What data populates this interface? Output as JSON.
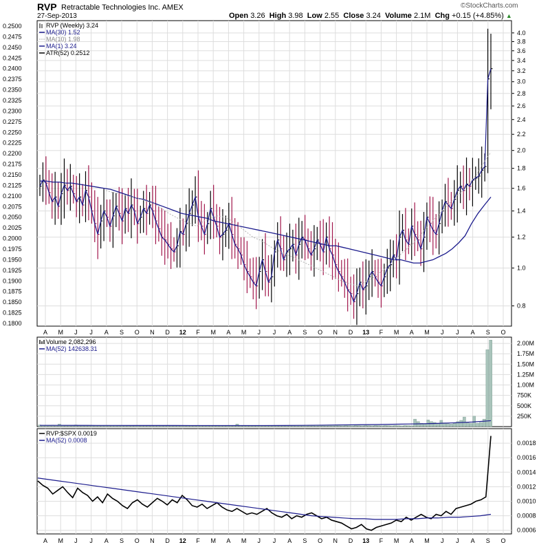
{
  "header": {
    "symbol": "RVP",
    "company": "Retractable Technologies Inc.",
    "exchange": "AMEX",
    "date": "27-Sep-2013",
    "quote": {
      "open_label": "Open",
      "open": "3.26",
      "high_label": "High",
      "high": "3.98",
      "low_label": "Low",
      "low": "2.55",
      "close_label": "Close",
      "close": "3.24",
      "volume_label": "Volume",
      "volume": "2.1M",
      "chg_label": "Chg",
      "chg": "+0.15 (+4.85%)"
    },
    "brand": "©StockCharts.com"
  },
  "colors": {
    "price_up": "#000000",
    "price_down": "#a0144a",
    "ma30": "#1a1a8c",
    "ma10": "#b0b0b0",
    "ma1": "#1a1a8c",
    "volume_bar": "#a9c4bb",
    "ratio": "#000000",
    "ratio_ma": "#1a1a8c",
    "grid": "#dddddd",
    "frame": "#000000"
  },
  "chart_data": [
    {
      "type": "ohlc",
      "legend": [
        {
          "icon": "ohlc-icon",
          "text": "RVP (Weekly) 3.24"
        },
        {
          "icon": "line-swatch",
          "text": "MA(30) 1.52",
          "color": "#1a1a8c"
        },
        {
          "icon": "dotted-swatch",
          "text": "MA(10) 1.98",
          "color": "#b0b0b0"
        },
        {
          "icon": "line-swatch",
          "text": "MA(1) 3.24",
          "color": "#1a1a8c"
        },
        {
          "icon": "line-swatch",
          "text": "ATR(52) 0.2512",
          "color": "#000000"
        }
      ],
      "y_right_ticks": [
        0.8,
        1.0,
        1.2,
        1.4,
        1.6,
        1.8,
        2.0,
        2.2,
        2.4,
        2.6,
        2.8,
        3.0,
        3.2,
        3.4,
        3.6,
        3.8,
        4.0
      ],
      "y_left_ticks": [
        "0.1800",
        "0.1825",
        "0.1850",
        "0.1875",
        "0.1900",
        "0.1925",
        "0.1950",
        "0.1975",
        "0.2000",
        "0.2025",
        "0.2050",
        "0.2075",
        "0.2100",
        "0.2125",
        "0.2150",
        "0.2175",
        "0.2200",
        "0.2225",
        "0.2250",
        "0.2275",
        "0.2300",
        "0.2325",
        "0.2350",
        "0.2375",
        "0.2400",
        "0.2425",
        "0.2450",
        "0.2475",
        "0.2500"
      ],
      "ylim": [
        0.71,
        4.3
      ],
      "log_scale": true,
      "close": [
        1.62,
        1.68,
        1.65,
        1.56,
        1.48,
        1.52,
        1.44,
        1.55,
        1.63,
        1.58,
        1.62,
        1.55,
        1.48,
        1.52,
        1.45,
        1.58,
        1.52,
        1.4,
        1.3,
        1.22,
        1.32,
        1.4,
        1.35,
        1.28,
        1.36,
        1.44,
        1.38,
        1.32,
        1.42,
        1.38,
        1.45,
        1.4,
        1.3,
        1.35,
        1.42,
        1.38,
        1.45,
        1.4,
        1.32,
        1.26,
        1.2,
        1.18,
        1.15,
        1.12,
        1.1,
        1.14,
        1.24,
        1.22,
        1.3,
        1.38,
        1.45,
        1.52,
        1.35,
        1.28,
        1.22,
        1.3,
        1.42,
        1.35,
        1.28,
        1.2,
        1.22,
        1.25,
        1.3,
        1.22,
        1.15,
        1.12,
        1.08,
        1.02,
        0.98,
        0.95,
        0.92,
        0.9,
        0.98,
        1.05,
        0.98,
        0.92,
        0.95,
        1.1,
        1.18,
        1.12,
        1.05,
        1.1,
        1.12,
        1.15,
        1.08,
        1.15,
        1.2,
        1.18,
        1.12,
        1.08,
        1.12,
        1.18,
        1.15,
        1.1,
        1.2,
        1.12,
        1.08,
        1.02,
        0.98,
        0.95,
        0.92,
        0.88,
        0.86,
        0.82,
        0.86,
        0.92,
        0.88,
        0.9,
        0.95,
        0.98,
        0.95,
        0.92,
        0.9,
        0.95,
        1.0,
        1.02,
        1.08,
        1.05,
        1.2,
        1.25,
        1.18,
        1.15,
        1.28,
        1.22,
        1.18,
        1.12,
        1.2,
        1.35,
        1.3,
        1.25,
        1.22,
        1.3,
        1.4,
        1.48,
        1.45,
        1.42,
        1.5,
        1.58,
        1.62,
        1.58,
        1.64,
        1.62,
        1.68,
        1.7,
        1.72,
        1.78,
        1.82,
        3.05,
        3.24
      ],
      "ma30": [
        1.67,
        1.67,
        1.66,
        1.66,
        1.65,
        1.65,
        1.64,
        1.63,
        1.62,
        1.61,
        1.6,
        1.59,
        1.57,
        1.55,
        1.53,
        1.51,
        1.5,
        1.48,
        1.46,
        1.44,
        1.42,
        1.4,
        1.38,
        1.37,
        1.36,
        1.35,
        1.34,
        1.32,
        1.31,
        1.3,
        1.29,
        1.28,
        1.27,
        1.26,
        1.25,
        1.24,
        1.23,
        1.22,
        1.21,
        1.2,
        1.19,
        1.18,
        1.17,
        1.16,
        1.15,
        1.14,
        1.14,
        1.13,
        1.12,
        1.11,
        1.1,
        1.09,
        1.08,
        1.07,
        1.06,
        1.05,
        1.05,
        1.04,
        1.03,
        1.03,
        1.04,
        1.05,
        1.07,
        1.09,
        1.12,
        1.16,
        1.21,
        1.3,
        1.38,
        1.45,
        1.52
      ],
      "ma10": [
        1.58,
        1.56,
        1.55,
        1.53,
        1.52,
        1.5,
        1.48,
        1.46,
        1.42,
        1.38,
        1.35,
        1.32,
        1.3,
        1.28,
        1.32,
        1.34,
        1.36,
        1.35,
        1.32,
        1.28,
        1.24,
        1.2,
        1.18,
        1.15,
        1.12,
        1.1,
        1.08,
        1.06,
        1.04,
        1.02,
        1.0,
        0.98,
        0.96,
        0.94,
        0.92,
        0.91,
        0.9,
        0.92,
        0.94,
        0.97,
        1.0,
        1.04,
        1.08,
        1.12,
        1.16,
        1.22,
        1.28,
        1.34,
        1.4,
        1.46,
        1.52,
        1.58,
        1.65,
        1.74,
        1.86,
        1.98
      ]
    },
    {
      "type": "bar",
      "legend": [
        {
          "icon": "volume-icon",
          "text": "Volume 2,082,296"
        },
        {
          "icon": "line-swatch",
          "text": "MA(52) 142638.31",
          "color": "#1a1a8c"
        }
      ],
      "y_ticks": [
        "250K",
        "500K",
        "750K",
        "1.00M",
        "1.25M",
        "1.50M",
        "1.75M",
        "2.00M"
      ],
      "y_tick_values": [
        250000,
        500000,
        750000,
        1000000,
        1250000,
        1500000,
        1750000,
        2000000
      ],
      "ylim": [
        0,
        2150000
      ],
      "values": [
        40000,
        30000,
        25000,
        20000,
        35000,
        30000,
        60000,
        25000,
        20000,
        30000,
        25000,
        40000,
        20000,
        25000,
        30000,
        20000,
        25000,
        30000,
        20000,
        25000,
        30000,
        20000,
        25000,
        30000,
        20000,
        25000,
        30000,
        25000,
        20000,
        30000,
        25000,
        20000,
        25000,
        30000,
        20000,
        25000,
        30000,
        20000,
        25000,
        30000,
        20000,
        25000,
        30000,
        20000,
        25000,
        30000,
        20000,
        25000,
        30000,
        20000,
        25000,
        30000,
        20000,
        25000,
        30000,
        20000,
        25000,
        30000,
        20000,
        30000,
        60000,
        25000,
        20000,
        30000,
        25000,
        20000,
        30000,
        25000,
        20000,
        30000,
        25000,
        20000,
        30000,
        25000,
        20000,
        30000,
        25000,
        20000,
        30000,
        25000,
        20000,
        30000,
        25000,
        20000,
        30000,
        25000,
        20000,
        30000,
        25000,
        20000,
        30000,
        25000,
        20000,
        30000,
        25000,
        20000,
        30000,
        25000,
        20000,
        30000,
        25000,
        20000,
        30000,
        25000,
        20000,
        30000,
        25000,
        20000,
        30000,
        25000,
        20000,
        30000,
        25000,
        20000,
        180000,
        120000,
        80000,
        60000,
        160000,
        120000,
        100000,
        80000,
        150000,
        90000,
        70000,
        60000,
        80000,
        120000,
        150000,
        230000,
        90000,
        80000,
        250000,
        80000,
        100000,
        180000,
        1850000,
        2080000
      ],
      "ma52": [
        30000,
        30000,
        29000,
        28000,
        28000,
        27000,
        27000,
        27000,
        26000,
        26000,
        26000,
        26000,
        26000,
        27000,
        30000,
        34000,
        40000,
        45000,
        50000,
        58000,
        65000,
        75000,
        90000,
        110000,
        142000
      ]
    },
    {
      "type": "line",
      "legend": [
        {
          "icon": "line-swatch",
          "text": "RVP:$SPX 0.0019",
          "color": "#000000"
        },
        {
          "icon": "line-swatch",
          "text": "MA(52) 0.0008",
          "color": "#1a1a8c"
        }
      ],
      "y_ticks": [
        "0.0006",
        "0.0008",
        "0.0010",
        "0.0012",
        "0.0014",
        "0.0016",
        "0.0018"
      ],
      "y_tick_values": [
        0.0006,
        0.0008,
        0.001,
        0.0012,
        0.0014,
        0.0016,
        0.0018
      ],
      "ylim": [
        0.00055,
        0.002
      ],
      "values": [
        0.00128,
        0.00122,
        0.00118,
        0.0011,
        0.00115,
        0.0012,
        0.00112,
        0.00105,
        0.00118,
        0.00112,
        0.00108,
        0.001,
        0.00106,
        0.00098,
        0.0011,
        0.00104,
        0.001,
        0.00094,
        0.0009,
        0.00098,
        0.00102,
        0.00096,
        0.00092,
        0.00098,
        0.00104,
        0.001,
        0.00095,
        0.00102,
        0.00098,
        0.00108,
        0.00102,
        0.00094,
        0.00092,
        0.00096,
        0.0009,
        0.00094,
        0.00098,
        0.00092,
        0.00088,
        0.00086,
        0.0009,
        0.00086,
        0.00082,
        0.00084,
        0.00082,
        0.00086,
        0.0009,
        0.00084,
        0.0008,
        0.00078,
        0.00082,
        0.00076,
        0.0008,
        0.00078,
        0.00082,
        0.00084,
        0.0008,
        0.00076,
        0.00078,
        0.00074,
        0.00072,
        0.0007,
        0.00066,
        0.00062,
        0.00064,
        0.00068,
        0.00062,
        0.0006,
        0.00064,
        0.00066,
        0.00068,
        0.0007,
        0.00074,
        0.00072,
        0.00078,
        0.00074,
        0.00078,
        0.00082,
        0.00078,
        0.00076,
        0.00082,
        0.0008,
        0.00086,
        0.00082,
        0.0009,
        0.00092,
        0.00094,
        0.00096,
        0.001,
        0.00102,
        0.00106,
        0.0019
      ],
      "ma52": [
        0.00132,
        0.0013,
        0.00128,
        0.00126,
        0.00124,
        0.00122,
        0.0012,
        0.00118,
        0.00116,
        0.00114,
        0.00112,
        0.0011,
        0.00108,
        0.00106,
        0.00104,
        0.00102,
        0.001,
        0.00098,
        0.00096,
        0.00094,
        0.00092,
        0.0009,
        0.00088,
        0.00086,
        0.00084,
        0.00082,
        0.0008,
        0.00079,
        0.00078,
        0.00077,
        0.00076,
        0.00076,
        0.00075,
        0.00075,
        0.00075,
        0.00076,
        0.00076,
        0.00077,
        0.00077,
        0.00078,
        0.00078,
        0.00079,
        0.0008,
        0.00082
      ]
    }
  ],
  "x_axis": {
    "labels": [
      "A",
      "M",
      "J",
      "J",
      "A",
      "S",
      "O",
      "N",
      "D",
      "12",
      "F",
      "M",
      "A",
      "M",
      "J",
      "J",
      "A",
      "S",
      "O",
      "N",
      "D",
      "13",
      "F",
      "M",
      "A",
      "M",
      "J",
      "J",
      "A",
      "S",
      "O"
    ],
    "bold": [
      "12",
      "13"
    ]
  }
}
